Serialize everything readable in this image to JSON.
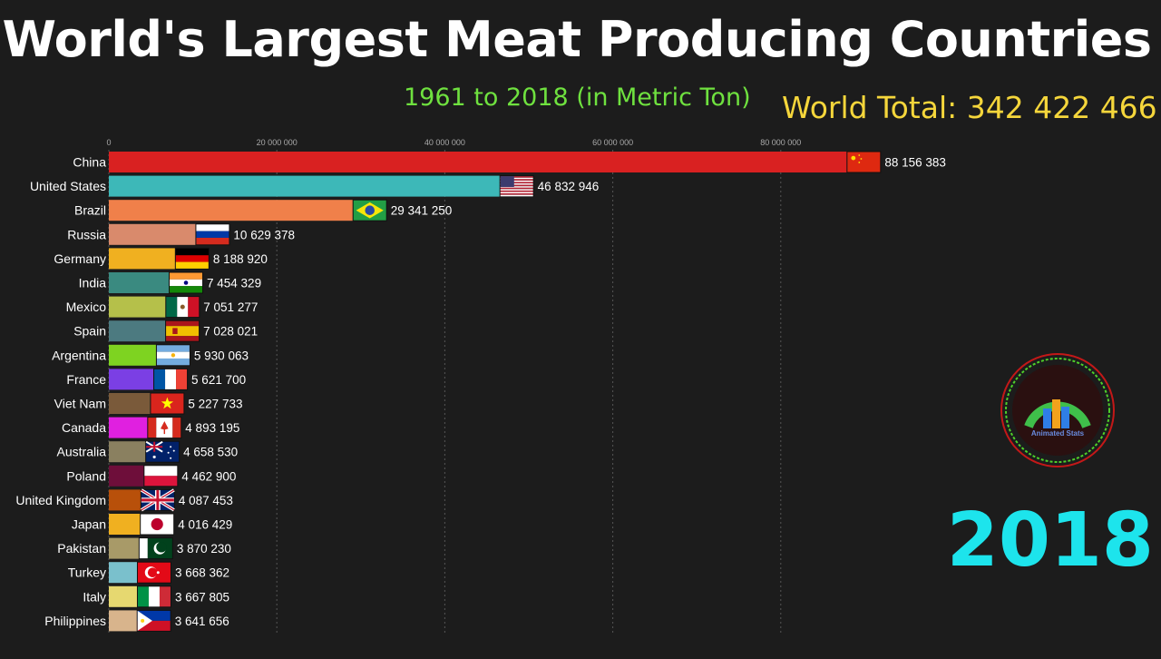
{
  "title": "World's Largest Meat Producing Countries",
  "subtitle": "1961 to 2018 (in Metric Ton)",
  "world_total": "World Total: 342 422 466",
  "year": "2018",
  "logo_text": "Animated Stats",
  "colors": {
    "subtitle": "#6fe13f",
    "world_total": "#f5d63b",
    "year": "#1de4ec"
  },
  "chart_data": {
    "type": "bar",
    "orientation": "horizontal",
    "xlim": [
      0,
      95000000
    ],
    "ticks": [
      0,
      20000000,
      40000000,
      60000000,
      80000000
    ],
    "tick_labels": [
      "0",
      "20 000 000",
      "40 000 000",
      "60 000 000",
      "80 000 000"
    ],
    "grid": true,
    "categories": [
      "China",
      "United States",
      "Brazil",
      "Russia",
      "Germany",
      "India",
      "Mexico",
      "Spain",
      "Argentina",
      "France",
      "Viet Nam",
      "Canada",
      "Australia",
      "Poland",
      "United Kingdom",
      "Japan",
      "Pakistan",
      "Turkey",
      "Italy",
      "Philippines"
    ],
    "values": [
      88156383,
      46832946,
      29341250,
      10629378,
      8188920,
      7454329,
      7051277,
      7028021,
      5930063,
      5621700,
      5227733,
      4893195,
      4658530,
      4462900,
      4087453,
      4016429,
      3870230,
      3668362,
      3667805,
      3641656
    ],
    "value_labels": [
      "88 156 383",
      "46 832 946",
      "29 341 250",
      "10 629 378",
      "8 188 920",
      "7 454 329",
      "7 051 277",
      "7 028 021",
      "5 930 063",
      "5 621 700",
      "5 227 733",
      "4 893 195",
      "4 658 530",
      "4 462 900",
      "4 087 453",
      "4 016 429",
      "3 870 230",
      "3 668 362",
      "3 667 805",
      "3 641 656"
    ],
    "bar_colors": [
      "#d92121",
      "#3db8b8",
      "#f0804a",
      "#d98a6c",
      "#f0b020",
      "#3a8a80",
      "#b5c04a",
      "#4c7a80",
      "#7ed321",
      "#7b3fe4",
      "#7a5a3a",
      "#e020e0",
      "#8a8060",
      "#6e0e3a",
      "#b8500a",
      "#f0b020",
      "#a89a68",
      "#7ac0cc",
      "#e6d870",
      "#d8b48c"
    ],
    "flags": [
      "china",
      "usa",
      "brazil",
      "russia",
      "germany",
      "india",
      "mexico",
      "spain",
      "argentina",
      "france",
      "vietnam",
      "canada",
      "australia",
      "poland",
      "uk",
      "japan",
      "pakistan",
      "turkey",
      "italy",
      "philippines"
    ]
  }
}
